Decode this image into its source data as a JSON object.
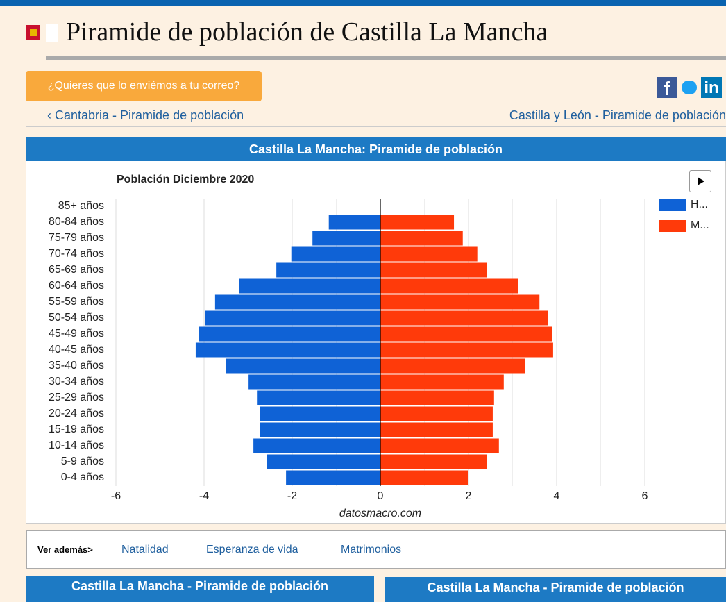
{
  "header": {
    "title": "Piramide de población de Castilla La Mancha"
  },
  "subscribe_button": "¿Quieres que lo enviémos a tu correo?",
  "social": [
    "f",
    "in"
  ],
  "nav": {
    "prev": "‹ Cantabria - Piramide de población",
    "next": "Castilla y León - Piramide de población"
  },
  "panel_title": "Castilla La Mancha: Piramide de población",
  "chart_data": {
    "type": "pyramid",
    "title": "Población Diciembre 2020",
    "credit": "datosmacro.com",
    "categories": [
      "85+ años",
      "80-84 años",
      "75-79 años",
      "70-74 años",
      "65-69 años",
      "60-64 años",
      "55-59 años",
      "50-54 años",
      "45-49 años",
      "40-45 años",
      "35-40 años",
      "30-34 años",
      "25-29 años",
      "20-24 años",
      "15-19 años",
      "10-14 años",
      "5-9 años",
      "0-4 años"
    ],
    "series": [
      {
        "name": "H...",
        "color": "#0f62d6",
        "values": [
          null,
          -1.17,
          -1.54,
          -2.02,
          -2.36,
          -3.21,
          -3.75,
          -3.98,
          -4.11,
          -4.19,
          -3.5,
          -2.99,
          -2.8,
          -2.74,
          -2.74,
          -2.88,
          -2.57,
          -2.14
        ]
      },
      {
        "name": "M...",
        "color": "#ff3a0a",
        "values": [
          null,
          1.67,
          1.87,
          2.2,
          2.41,
          3.12,
          3.61,
          3.81,
          3.89,
          3.92,
          3.28,
          2.8,
          2.58,
          2.55,
          2.55,
          2.69,
          2.41,
          2.0
        ]
      }
    ],
    "xlim": [
      -6,
      6
    ],
    "xticks": [
      -6,
      -4,
      -2,
      0,
      2,
      4,
      6
    ],
    "xminor": [
      -5,
      -3,
      -1,
      1,
      3,
      5
    ],
    "grid": true,
    "legend": "top-right"
  },
  "see_also": {
    "label": "Ver además>",
    "links": [
      "Natalidad",
      "Esperanza de vida",
      "Matrimonios"
    ]
  },
  "bottom_panels": [
    "Castilla La Mancha - Piramide de población",
    "Castilla La Mancha - Piramide de población"
  ]
}
